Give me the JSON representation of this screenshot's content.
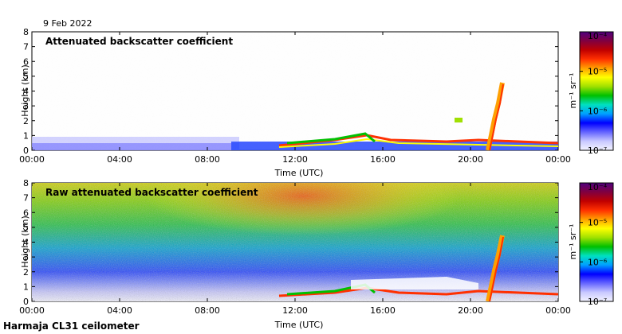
{
  "date_label": "9 Feb 2022",
  "instrument_label": "Harmaja CL31 ceilometer",
  "colorbar": {
    "unit_label": "m⁻¹ sr⁻¹",
    "ticks": [
      "10⁻⁴",
      "10⁻⁵",
      "10⁻⁶",
      "10⁻⁷"
    ],
    "colors": [
      "#f4f4ff",
      "#c8c8ff",
      "#6464ff",
      "#0000ff",
      "#00a0ff",
      "#00e0c0",
      "#00c000",
      "#a0e000",
      "#ffff00",
      "#ffa000",
      "#ff3000",
      "#c00000",
      "#800040",
      "#500080"
    ]
  },
  "chart_data": [
    {
      "type": "heatmap",
      "title": "Attenuated backscatter coefficient",
      "xlabel": "Time (UTC)",
      "ylabel": "Height (km)",
      "xlim": [
        "00:00",
        "00:00"
      ],
      "ylim": [
        0,
        8
      ],
      "x_ticks": [
        "00:00",
        "04:00",
        "08:00",
        "12:00",
        "16:00",
        "20:00",
        "00:00"
      ],
      "y_ticks": [
        "0",
        "1",
        "2",
        "3",
        "4",
        "5",
        "6",
        "7",
        "8"
      ],
      "colorbar_range": [
        "1e-7",
        "1e-4"
      ],
      "log_scale_colorbar": true
    },
    {
      "type": "heatmap",
      "title": "Raw attenuated backscatter coefficient",
      "xlabel": "Time (UTC)",
      "ylabel": "Height (km)",
      "xlim": [
        "00:00",
        "00:00"
      ],
      "ylim": [
        0,
        8
      ],
      "x_ticks": [
        "00:00",
        "04:00",
        "08:00",
        "12:00",
        "16:00",
        "20:00",
        "00:00"
      ],
      "y_ticks": [
        "0",
        "1",
        "2",
        "3",
        "4",
        "5",
        "6",
        "7",
        "8"
      ],
      "colorbar_range": [
        "1e-7",
        "1e-4"
      ],
      "log_scale_colorbar": true
    }
  ]
}
